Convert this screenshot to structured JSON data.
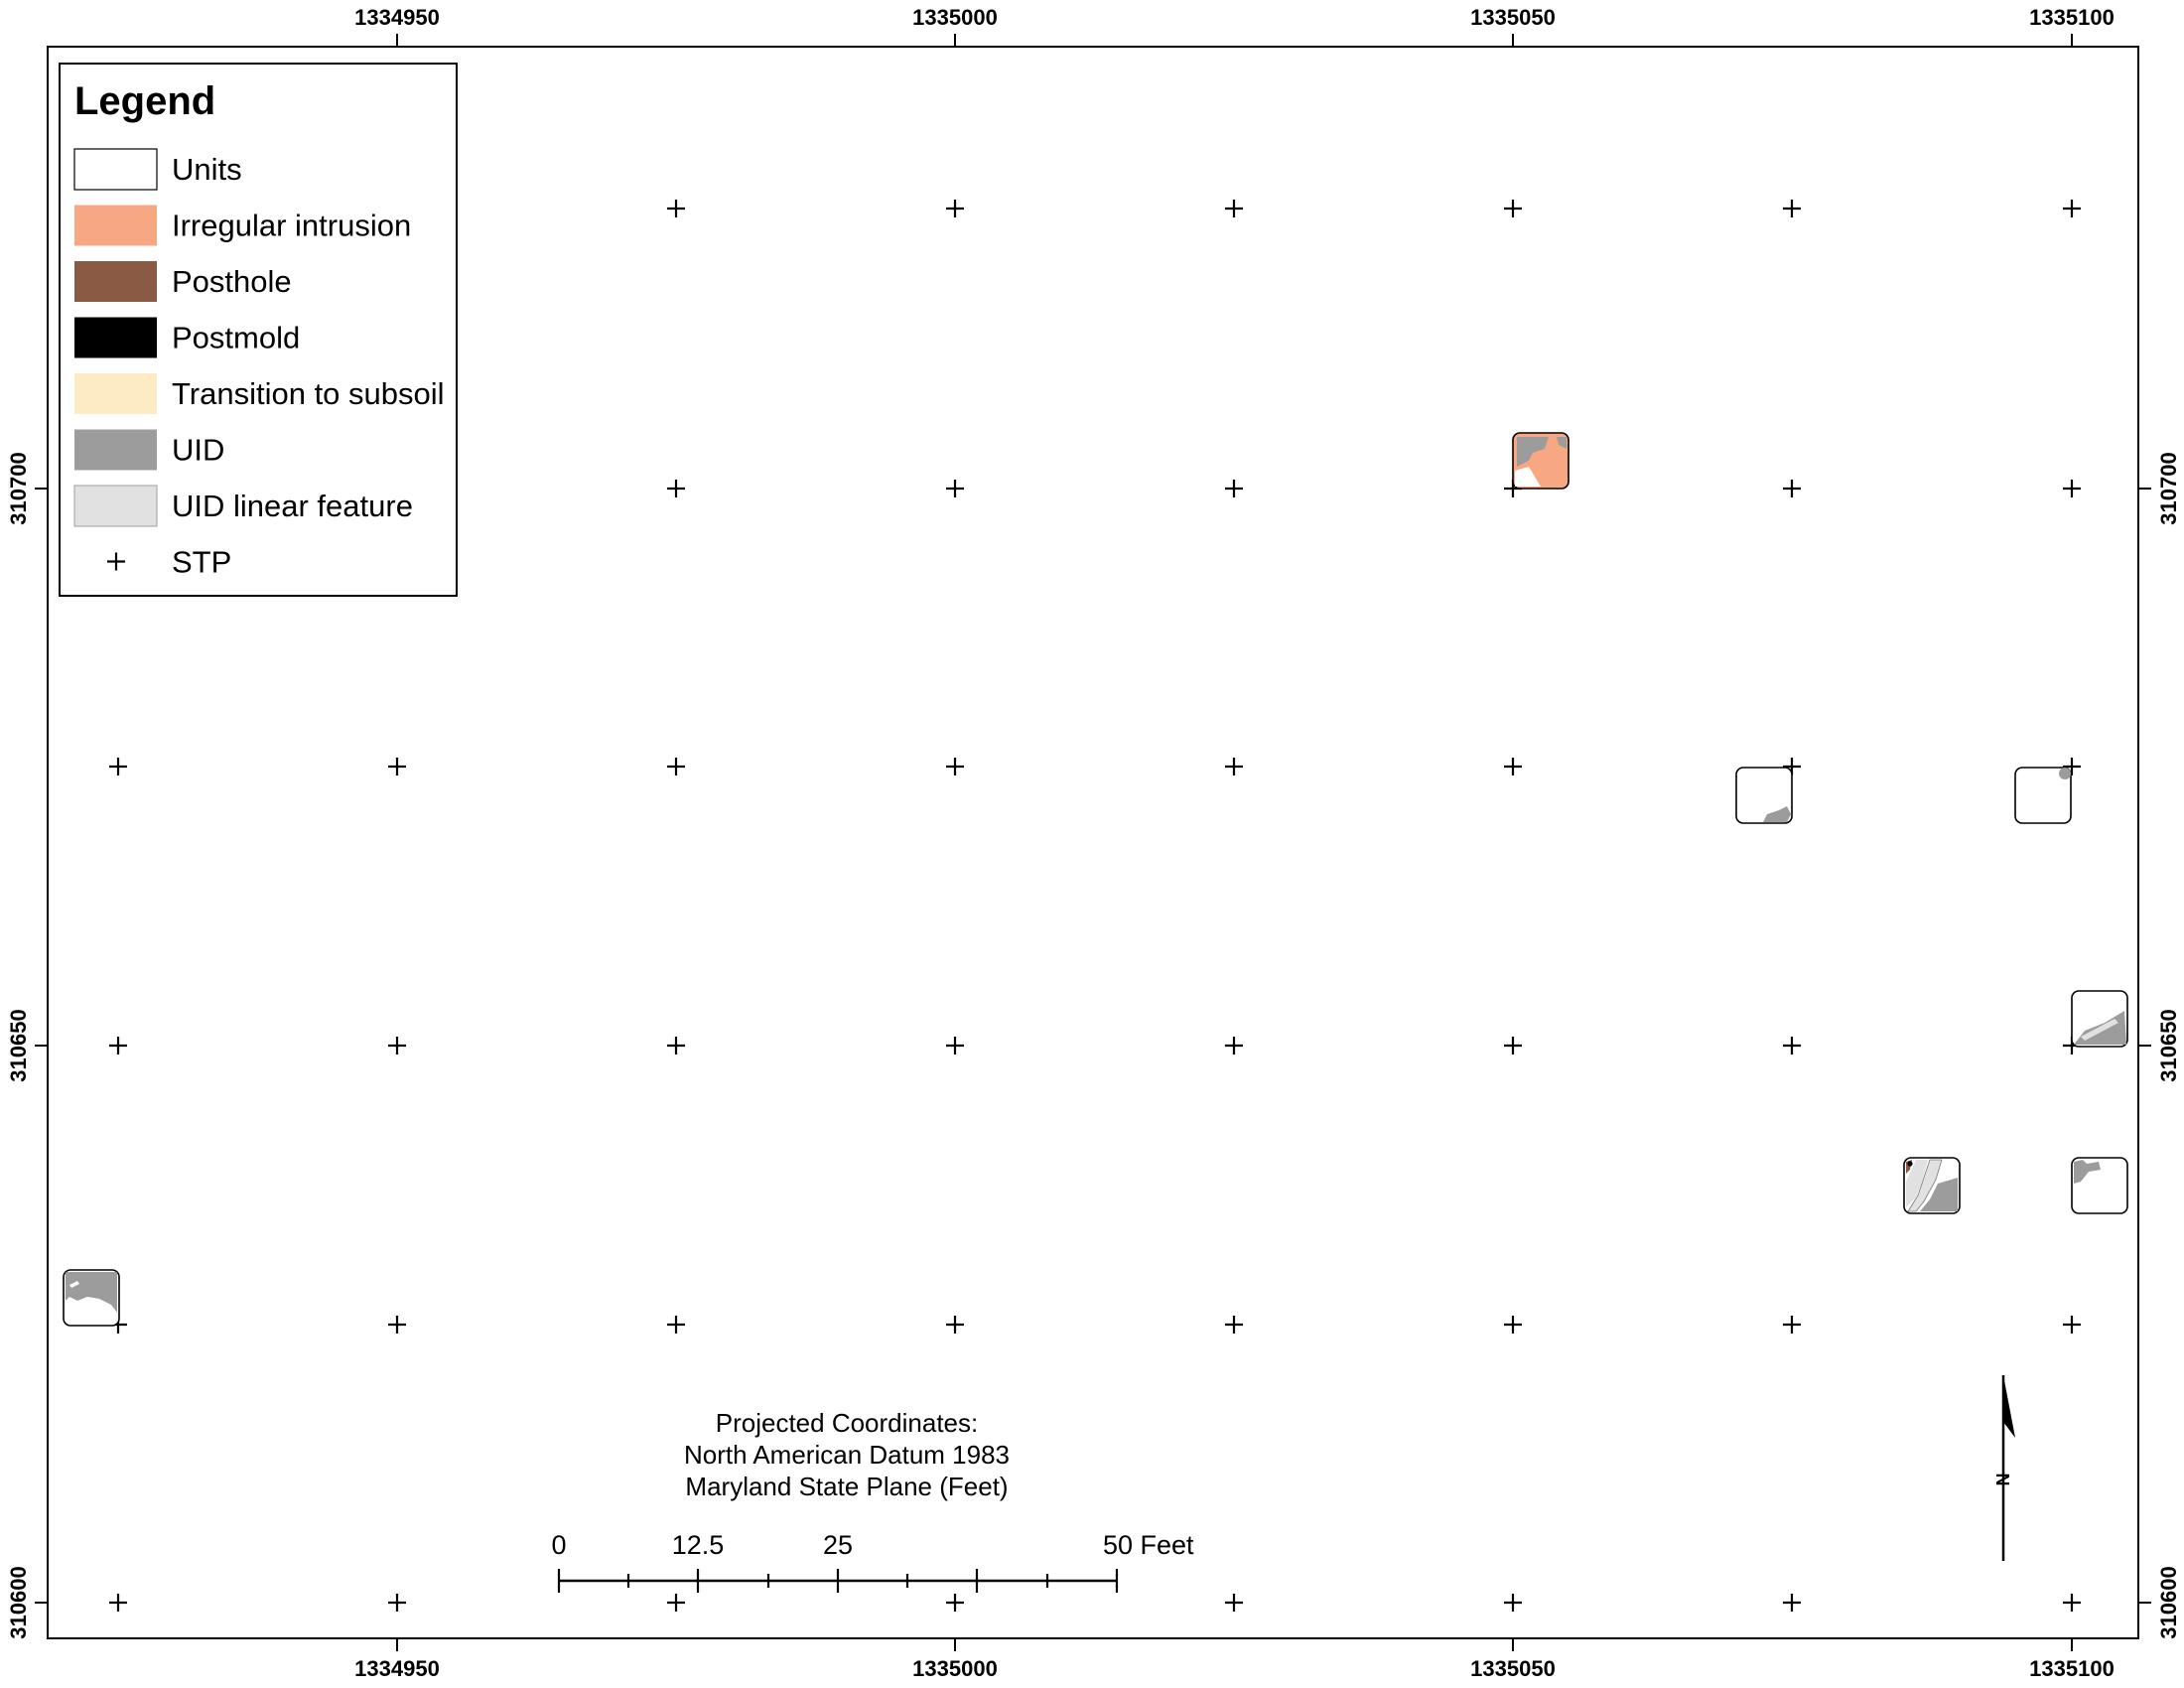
{
  "map": {
    "x_ticks": [
      "1334950",
      "1335000",
      "1335050",
      "1335100"
    ],
    "y_ticks": [
      "310700",
      "310650",
      "310600"
    ]
  },
  "legend": {
    "title": "Legend",
    "items": [
      {
        "label": "Units",
        "color": "#ffffff",
        "kind": "box"
      },
      {
        "label": "Irregular intrusion",
        "color": "#f7a882",
        "kind": "box"
      },
      {
        "label": "Posthole",
        "color": "#8b5a45",
        "kind": "box"
      },
      {
        "label": "Postmold",
        "color": "#000000",
        "kind": "box"
      },
      {
        "label": "Transition to subsoil",
        "color": "#fdebc4",
        "kind": "box"
      },
      {
        "label": "UID",
        "color": "#9c9c9c",
        "kind": "box"
      },
      {
        "label": "UID linear feature",
        "color": "#e1e1e1",
        "kind": "box"
      },
      {
        "label": "STP",
        "color": "#000000",
        "kind": "cross"
      }
    ]
  },
  "coordinates_note": {
    "line1": "Projected Coordinates:",
    "line2": "North American Datum 1983",
    "line3": "Maryland State Plane (Feet)"
  },
  "scale_bar": {
    "labels": [
      "0",
      "12.5",
      "25",
      "50 Feet"
    ]
  },
  "north_arrow": {
    "label": "N"
  }
}
